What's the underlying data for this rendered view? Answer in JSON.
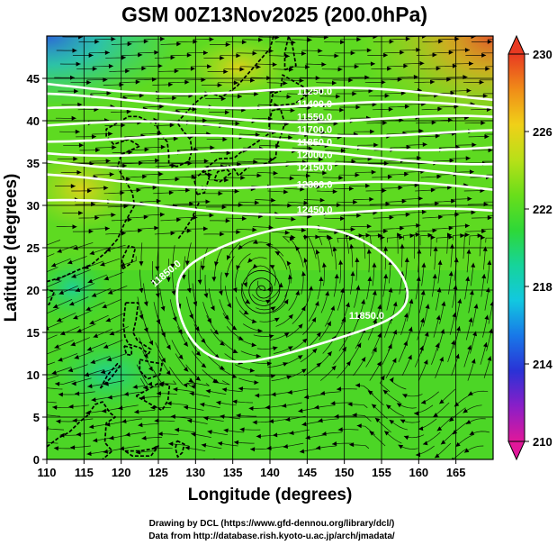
{
  "chart_data": {
    "type": "heatmap",
    "title": "GSM 00Z13Nov2025 (200.0hPa)",
    "xlabel": "Longitude (degrees)",
    "ylabel": "Latitude  (degrees)",
    "xlim": [
      110,
      170
    ],
    "ylim": [
      0,
      50
    ],
    "xticks": [
      110,
      115,
      120,
      125,
      130,
      135,
      140,
      145,
      150,
      155,
      160,
      165
    ],
    "yticks": [
      0,
      5,
      10,
      15,
      20,
      25,
      30,
      35,
      40,
      45
    ],
    "colorbar": {
      "ticks": [
        210,
        214,
        218,
        222,
        226,
        230
      ],
      "min": 210,
      "max": 230,
      "colors": [
        "#e0189a",
        "#8a1ec8",
        "#2a32d6",
        "#1878e8",
        "#12c8e0",
        "#16d49a",
        "#2ed838",
        "#6ade1a",
        "#b8e018",
        "#f0d018",
        "#f08c18",
        "#e83a22"
      ]
    },
    "contours": [
      {
        "label": "11850.0",
        "lat": [
          22,
          17
        ]
      },
      {
        "label": "12450.0",
        "lat": 29.5
      },
      {
        "label": "12300.0",
        "lat": 32.5
      },
      {
        "label": "12150.0",
        "lat": 34.5
      },
      {
        "label": "12000.0",
        "lat": 36
      },
      {
        "label": "11850.0",
        "lat": 37.5
      },
      {
        "label": "11700.0",
        "lat": 39
      },
      {
        "label": "11550.0",
        "lat": 40.5
      },
      {
        "label": "11400.0",
        "lat": 42
      },
      {
        "label": "11250.0",
        "lat": 43.5
      }
    ],
    "vortex_center": {
      "lon": 139,
      "lat": 20
    }
  },
  "credits": {
    "line1": "Drawing by DCL (https://www.gfd-dennou.org/library/dcl/)",
    "line2": "Data from http://database.rish.kyoto-u.ac.jp/arch/jmadata/"
  }
}
